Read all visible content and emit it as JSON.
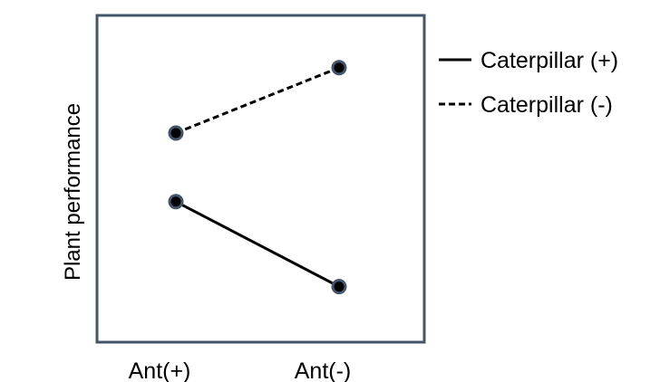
{
  "chart_data": {
    "type": "line",
    "title": "",
    "xlabel": "",
    "ylabel": "Plant  performance",
    "categories": [
      "Ant(+)",
      "Ant(-)"
    ],
    "ylim": [
      0,
      10
    ],
    "grid": false,
    "legend_position": "right",
    "series": [
      {
        "name": "Caterpillar (+)",
        "values": [
          4.3,
          1.7
        ],
        "line_style": "solid"
      },
      {
        "name": "Caterpillar (-)",
        "values": [
          6.4,
          8.4
        ],
        "line_style": "dashed"
      }
    ]
  },
  "colors": {
    "frame": "#44546a",
    "line": "#000000",
    "marker_fill": "#000000",
    "marker_ring": "#44546a"
  }
}
